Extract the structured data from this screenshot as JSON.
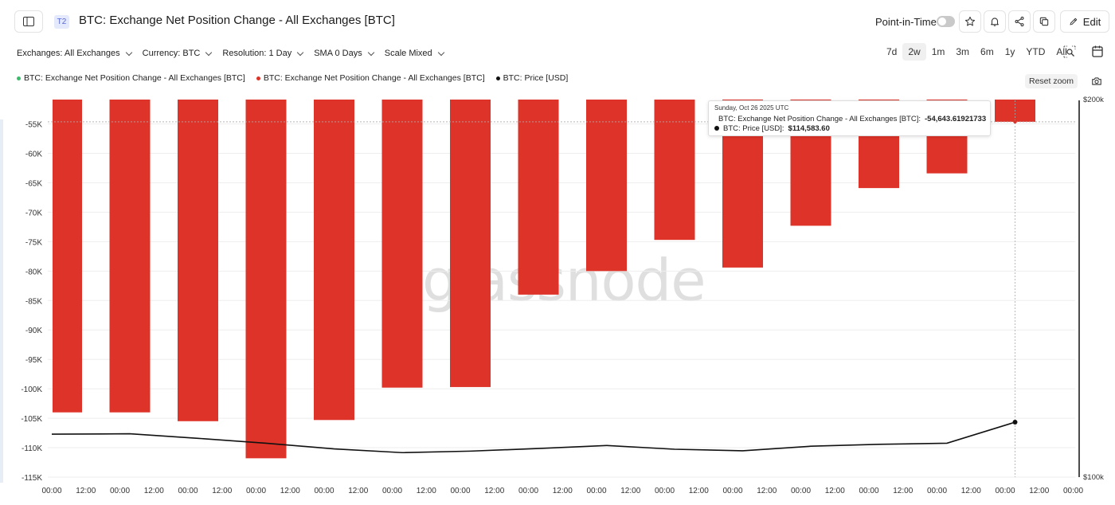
{
  "header": {
    "tag": "T2",
    "title": "BTC: Exchange Net Position Change - All Exchanges [BTC]",
    "point_in_time_label": "Point-in-Time",
    "edit_label": "Edit"
  },
  "filters": [
    {
      "label": "Exchanges: All Exchanges"
    },
    {
      "label": "Currency: BTC"
    },
    {
      "label": "Resolution: 1 Day"
    },
    {
      "label": "SMA 0 Days"
    },
    {
      "label": "Scale Mixed"
    }
  ],
  "ranges": [
    {
      "label": "7d",
      "active": false
    },
    {
      "label": "2w",
      "active": true
    },
    {
      "label": "1m",
      "active": false
    },
    {
      "label": "3m",
      "active": false
    },
    {
      "label": "6m",
      "active": false
    },
    {
      "label": "1y",
      "active": false
    },
    {
      "label": "YTD",
      "active": false
    },
    {
      "label": "All",
      "active": false
    }
  ],
  "legend": [
    {
      "label": "BTC: Exchange Net Position Change - All Exchanges [BTC]",
      "color": "#3dbb6c"
    },
    {
      "label": "BTC: Exchange Net Position Change - All Exchanges [BTC]",
      "color": "#dd3328"
    },
    {
      "label": "BTC: Price [USD]",
      "color": "#111111"
    }
  ],
  "reset_zoom_label": "Reset zoom",
  "watermark": "glassnode",
  "tooltip": {
    "date": "Sunday, Oct 26 2025 UTC",
    "rows": [
      {
        "label": "BTC: Exchange Net Position Change - All Exchanges [BTC]:",
        "value": "-54,643.61921733",
        "color": "#dd3328"
      },
      {
        "label": "BTC: Price [USD]:",
        "value": "$114,583.60",
        "color": "#111111"
      }
    ]
  },
  "chart_data": {
    "type": "bar",
    "x_ticks": [
      "00:00",
      "12:00",
      "00:00",
      "12:00",
      "00:00",
      "12:00",
      "00:00",
      "12:00",
      "00:00",
      "12:00",
      "00:00",
      "12:00",
      "00:00",
      "12:00",
      "00:00",
      "12:00",
      "00:00",
      "12:00",
      "00:00",
      "12:00",
      "00:00",
      "12:00",
      "00:00",
      "12:00",
      "00:00",
      "12:00",
      "00:00",
      "12:00",
      "00:00",
      "12:00",
      "00:00"
    ],
    "y_ticks": [
      "-55K",
      "-60K",
      "-65K",
      "-70K",
      "-75K",
      "-80K",
      "-85K",
      "-90K",
      "-95K",
      "-100K",
      "-105K",
      "-110K",
      "-115K"
    ],
    "y_right_ticks": [
      "$200k",
      "$100k"
    ],
    "ylim": [
      -115000,
      -51000
    ],
    "y_right_lim": [
      100000,
      200000
    ],
    "series": [
      {
        "name": "BTC: Exchange Net Position Change - All Exchanges [BTC]",
        "color": "#dd3328",
        "values": [
          -104000,
          -104000,
          -105500,
          -111800,
          -105300,
          -99800,
          -99700,
          -84000,
          -80000,
          -74700,
          -79400,
          -72300,
          -65900,
          -63400,
          -54643.62
        ]
      },
      {
        "name": "BTC: Price [USD]",
        "color": "#111111",
        "axis": "right",
        "values": [
          111400,
          111500,
          110300,
          109000,
          107500,
          106500,
          106900,
          107600,
          108400,
          107400,
          107000,
          108200,
          108700,
          109000,
          114583.6
        ]
      }
    ],
    "crosshair_index": 14,
    "crosshair_value": -54643.62
  }
}
